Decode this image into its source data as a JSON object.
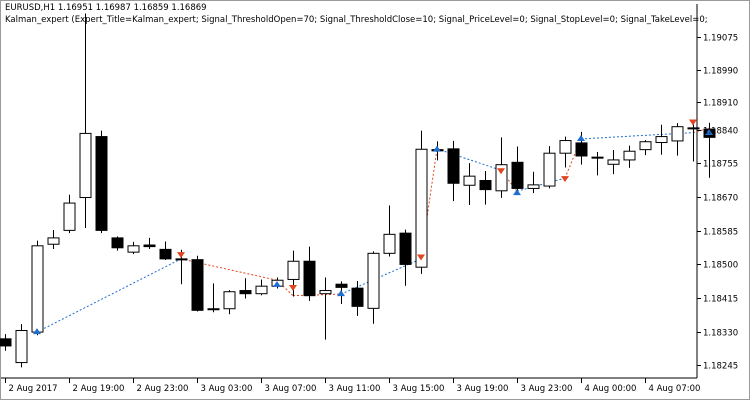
{
  "chart_header": {
    "symbol_line": "EURUSD,H1  1.16951 1.16987 1.16859 1.16869",
    "params_line": "Kalman_expert (Expert_Title=Kalman_expert; Signal_ThresholdOpen=70; Signal_ThresholdClose=10; Signal_PriceLevel=0; Signal_StopLevel=0; Signal_TakeLevel=0;"
  },
  "colors": {
    "background": "#ffffff",
    "bull_candle_fill": "#ffffff",
    "bear_candle_fill": "#000000",
    "candle_outline": "#000000",
    "up_trend_line": "#1e6fd0",
    "down_trend_line": "#e0451e",
    "buy_arrow": "#1e6fd0",
    "sell_arrow": "#e0451e"
  },
  "chart_data": {
    "type": "candlestick",
    "title": "EURUSD,H1",
    "ylim": [
      1.18213,
      1.19158
    ],
    "y_ticks": [
      "1.19075",
      "1.18990",
      "1.18910",
      "1.18840",
      "1.18755",
      "1.18670",
      "1.18585",
      "1.18500",
      "1.18415",
      "1.18330",
      "1.18245"
    ],
    "y_tick_values": [
      1.19075,
      1.1899,
      1.1891,
      1.1884,
      1.18755,
      1.1867,
      1.18585,
      1.185,
      1.18415,
      1.1833,
      1.18245
    ],
    "x_ticks": [
      "2 Aug 2017",
      "2 Aug 19:00",
      "2 Aug 23:00",
      "3 Aug 03:00",
      "3 Aug 07:00",
      "3 Aug 11:00",
      "3 Aug 15:00",
      "3 Aug 19:00",
      "3 Aug 23:00",
      "4 Aug 00:00",
      "4 Aug 07:00"
    ],
    "x_tick_candle_index": [
      0,
      4,
      8,
      12,
      16,
      20,
      24,
      28,
      32,
      36,
      40
    ],
    "candles": [
      {
        "o": 1.18312,
        "h": 1.18324,
        "l": 1.18282,
        "c": 1.18294
      },
      {
        "o": 1.18252,
        "h": 1.18349,
        "l": 1.1824,
        "c": 1.18333
      },
      {
        "o": 1.18329,
        "h": 1.1856,
        "l": 1.18321,
        "c": 1.18547
      },
      {
        "o": 1.18551,
        "h": 1.18587,
        "l": 1.18539,
        "c": 1.18567
      },
      {
        "o": 1.18586,
        "h": 1.18676,
        "l": 1.18579,
        "c": 1.18655
      },
      {
        "o": 1.18669,
        "h": 1.19134,
        "l": 1.18592,
        "c": 1.18831
      },
      {
        "o": 1.18823,
        "h": 1.18838,
        "l": 1.18579,
        "c": 1.18586
      },
      {
        "o": 1.18567,
        "h": 1.18571,
        "l": 1.18535,
        "c": 1.18542
      },
      {
        "o": 1.18531,
        "h": 1.18557,
        "l": 1.18526,
        "c": 1.18547
      },
      {
        "o": 1.18549,
        "h": 1.18567,
        "l": 1.18539,
        "c": 1.18545
      },
      {
        "o": 1.18538,
        "h": 1.18558,
        "l": 1.18511,
        "c": 1.18514
      },
      {
        "o": 1.18514,
        "h": 1.18537,
        "l": 1.1845,
        "c": 1.18514
      },
      {
        "o": 1.18512,
        "h": 1.18522,
        "l": 1.18381,
        "c": 1.18384
      },
      {
        "o": 1.18386,
        "h": 1.18452,
        "l": 1.18379,
        "c": 1.18388
      },
      {
        "o": 1.18388,
        "h": 1.18435,
        "l": 1.18374,
        "c": 1.18431
      },
      {
        "o": 1.18434,
        "h": 1.18465,
        "l": 1.18414,
        "c": 1.18426
      },
      {
        "o": 1.18426,
        "h": 1.18462,
        "l": 1.18422,
        "c": 1.18445
      },
      {
        "o": 1.18445,
        "h": 1.18467,
        "l": 1.18439,
        "c": 1.1846
      },
      {
        "o": 1.18462,
        "h": 1.18535,
        "l": 1.18419,
        "c": 1.18508
      },
      {
        "o": 1.18508,
        "h": 1.18545,
        "l": 1.18408,
        "c": 1.18421
      },
      {
        "o": 1.18426,
        "h": 1.18467,
        "l": 1.1831,
        "c": 1.18434
      },
      {
        "o": 1.1845,
        "h": 1.18457,
        "l": 1.184,
        "c": 1.18442
      },
      {
        "o": 1.1844,
        "h": 1.18458,
        "l": 1.1837,
        "c": 1.18394
      },
      {
        "o": 1.18389,
        "h": 1.18533,
        "l": 1.1835,
        "c": 1.18528
      },
      {
        "o": 1.18528,
        "h": 1.18649,
        "l": 1.1852,
        "c": 1.18576
      },
      {
        "o": 1.18579,
        "h": 1.18588,
        "l": 1.18446,
        "c": 1.185
      },
      {
        "o": 1.18493,
        "h": 1.18838,
        "l": 1.18476,
        "c": 1.18791
      },
      {
        "o": 1.1879,
        "h": 1.18811,
        "l": 1.18763,
        "c": 1.18787
      },
      {
        "o": 1.18792,
        "h": 1.18812,
        "l": 1.1866,
        "c": 1.18705
      },
      {
        "o": 1.187,
        "h": 1.18756,
        "l": 1.1865,
        "c": 1.18723
      },
      {
        "o": 1.18712,
        "h": 1.18736,
        "l": 1.18651,
        "c": 1.18689
      },
      {
        "o": 1.18686,
        "h": 1.18821,
        "l": 1.18668,
        "c": 1.18752
      },
      {
        "o": 1.18758,
        "h": 1.18798,
        "l": 1.18676,
        "c": 1.18692
      },
      {
        "o": 1.18692,
        "h": 1.18734,
        "l": 1.1868,
        "c": 1.18701
      },
      {
        "o": 1.18698,
        "h": 1.18799,
        "l": 1.18692,
        "c": 1.18781
      },
      {
        "o": 1.18781,
        "h": 1.18823,
        "l": 1.18745,
        "c": 1.18813
      },
      {
        "o": 1.18807,
        "h": 1.18835,
        "l": 1.18752,
        "c": 1.18774
      },
      {
        "o": 1.18771,
        "h": 1.18784,
        "l": 1.18725,
        "c": 1.18771
      },
      {
        "o": 1.18753,
        "h": 1.18789,
        "l": 1.18728,
        "c": 1.18764
      },
      {
        "o": 1.18764,
        "h": 1.188,
        "l": 1.18744,
        "c": 1.18786
      },
      {
        "o": 1.1879,
        "h": 1.18814,
        "l": 1.18776,
        "c": 1.1881
      },
      {
        "o": 1.18808,
        "h": 1.18853,
        "l": 1.18777,
        "c": 1.18823
      },
      {
        "o": 1.18812,
        "h": 1.18857,
        "l": 1.18775,
        "c": 1.18848
      },
      {
        "o": 1.18843,
        "h": 1.18857,
        "l": 1.1876,
        "c": 1.18845
      },
      {
        "o": 1.18842,
        "h": 1.18858,
        "l": 1.18719,
        "c": 1.18821
      }
    ],
    "trend_line": [
      {
        "i": 2,
        "y": 1.18329,
        "dir": "up"
      },
      {
        "i": 11,
        "y": 1.18514,
        "dir": "down"
      },
      {
        "i": 17,
        "y": 1.1846,
        "dir": "down"
      },
      {
        "i": 18,
        "y": 1.18421,
        "dir": "down"
      },
      {
        "i": 21,
        "y": 1.18425,
        "dir": "up"
      },
      {
        "i": 26,
        "y": 1.18514,
        "dir": "down"
      },
      {
        "i": 27,
        "y": 1.18792,
        "dir": "up"
      },
      {
        "i": 31,
        "y": 1.18738,
        "dir": "down"
      },
      {
        "i": 32,
        "y": 1.18685,
        "dir": "up"
      },
      {
        "i": 35,
        "y": 1.18718,
        "dir": "down"
      },
      {
        "i": 36,
        "y": 1.18817,
        "dir": "up"
      },
      {
        "i": 43,
        "y": 1.18833,
        "dir": "down"
      },
      {
        "i": 44,
        "y": 1.18844,
        "dir": "up"
      }
    ],
    "signals": [
      {
        "i": 2,
        "y": 1.18329,
        "type": "buy"
      },
      {
        "i": 11,
        "y": 1.18526,
        "type": "sell"
      },
      {
        "i": 17,
        "y": 1.18448,
        "type": "buy"
      },
      {
        "i": 18,
        "y": 1.18443,
        "type": "sell"
      },
      {
        "i": 21,
        "y": 1.18425,
        "type": "buy"
      },
      {
        "i": 26,
        "y": 1.1852,
        "type": "sell"
      },
      {
        "i": 27,
        "y": 1.1879,
        "type": "buy"
      },
      {
        "i": 31,
        "y": 1.18738,
        "type": "sell"
      },
      {
        "i": 32,
        "y": 1.1868,
        "type": "buy"
      },
      {
        "i": 35,
        "y": 1.18718,
        "type": "sell"
      },
      {
        "i": 36,
        "y": 1.18817,
        "type": "buy"
      },
      {
        "i": 43,
        "y": 1.18861,
        "type": "sell"
      },
      {
        "i": 44,
        "y": 1.18832,
        "type": "buy"
      }
    ]
  }
}
